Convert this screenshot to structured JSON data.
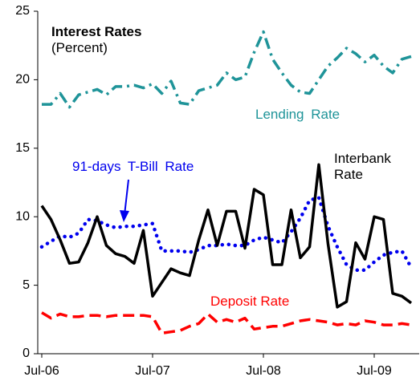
{
  "chart_data": {
    "type": "line",
    "title": "Interest Rates",
    "subtitle": "(Percent)",
    "categories": [
      "Jul-06",
      null,
      null,
      null,
      null,
      null,
      null,
      null,
      null,
      null,
      null,
      null,
      "Jul-07",
      null,
      null,
      null,
      null,
      null,
      null,
      null,
      null,
      null,
      null,
      null,
      "Jul-08",
      null,
      null,
      null,
      null,
      null,
      null,
      null,
      null,
      null,
      null,
      null,
      "Jul-09",
      null,
      null,
      null,
      null
    ],
    "ylim": [
      0,
      25
    ],
    "yticks": [
      0,
      5,
      10,
      15,
      20,
      25
    ],
    "grid": false,
    "series": [
      {
        "name": "Lending Rate",
        "color": "#1f9499",
        "dash": "dashdot",
        "values": [
          18.2,
          18.2,
          19.0,
          18.0,
          18.9,
          19.1,
          19.3,
          18.9,
          19.5,
          19.5,
          19.6,
          19.4,
          19.7,
          19.0,
          19.9,
          18.3,
          18.2,
          19.2,
          19.4,
          19.6,
          20.5,
          20.0,
          20.2,
          22.0,
          23.5,
          21.5,
          20.5,
          19.6,
          19.1,
          19.0,
          20.0,
          21.0,
          21.6,
          22.3,
          21.9,
          21.3,
          21.8,
          21.0,
          20.5,
          21.5,
          21.7
        ]
      },
      {
        "name": "91-days T-Bill Rate",
        "color": "#0000ee",
        "dash": "dot",
        "values": [
          7.8,
          8.2,
          8.6,
          8.5,
          8.8,
          9.8,
          9.7,
          9.4,
          9.2,
          9.3,
          9.3,
          9.4,
          9.5,
          7.5,
          7.5,
          7.5,
          7.4,
          7.6,
          7.9,
          7.9,
          8.0,
          7.9,
          7.9,
          8.3,
          8.5,
          8.3,
          8.1,
          8.9,
          9.9,
          11.2,
          11.4,
          9.3,
          7.8,
          6.5,
          6.1,
          6.1,
          6.7,
          7.2,
          7.4,
          7.5,
          6.3
        ]
      },
      {
        "name": "Interbank Rate",
        "color": "#000000",
        "dash": "solid",
        "values": [
          10.8,
          9.8,
          8.3,
          6.6,
          6.7,
          8.1,
          10.0,
          7.9,
          7.3,
          7.1,
          6.6,
          9.0,
          4.2,
          5.2,
          6.2,
          5.9,
          5.7,
          8.3,
          10.5,
          7.9,
          10.4,
          10.4,
          7.7,
          12.0,
          11.6,
          6.5,
          6.5,
          10.5,
          7.0,
          7.8,
          13.8,
          8.0,
          3.4,
          3.8,
          8.1,
          6.9,
          10.0,
          9.8,
          4.4,
          4.2,
          3.7
        ]
      },
      {
        "name": "Deposit Rate",
        "color": "#ff0000",
        "dash": "dash",
        "values": [
          3.0,
          2.6,
          2.9,
          2.7,
          2.7,
          2.8,
          2.8,
          2.7,
          2.8,
          2.8,
          2.8,
          2.8,
          2.7,
          1.5,
          1.6,
          1.7,
          2.0,
          2.2,
          2.9,
          2.3,
          2.5,
          2.3,
          2.6,
          1.8,
          1.9,
          2.0,
          2.0,
          2.2,
          2.4,
          2.5,
          2.4,
          2.3,
          2.1,
          2.2,
          2.1,
          2.4,
          2.3,
          2.1,
          2.1,
          2.2,
          2.1
        ]
      }
    ]
  }
}
